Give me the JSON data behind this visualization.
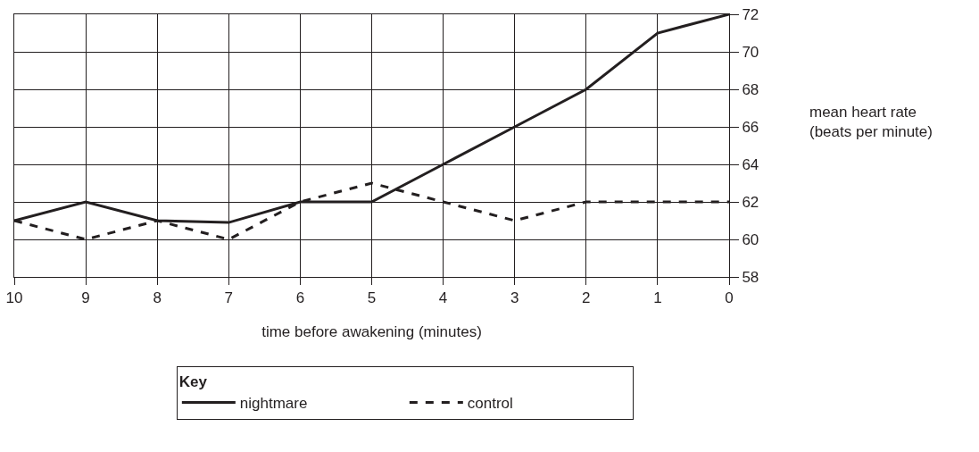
{
  "chart_data": {
    "type": "line",
    "xlabel": "time before awakening (minutes)",
    "ylabel": "mean heart rate\n(beats per minute)",
    "legend_title": "Key",
    "x": [
      10,
      9,
      8,
      7,
      6,
      5,
      4,
      3,
      2,
      1,
      0
    ],
    "series": [
      {
        "name": "nightmare",
        "color": "#231f20",
        "line_style": "solid",
        "values": [
          61,
          62,
          61,
          60.9,
          62,
          62,
          64,
          66,
          68,
          71,
          72
        ]
      },
      {
        "name": "control",
        "color": "#231f20",
        "line_style": "dashed",
        "values": [
          61,
          60,
          61,
          60,
          62,
          63,
          62,
          61,
          62,
          62,
          62
        ]
      }
    ],
    "xlim": [
      10,
      0
    ],
    "xticks": [
      10,
      9,
      8,
      7,
      6,
      5,
      4,
      3,
      2,
      1,
      0
    ],
    "ylim": [
      58,
      72
    ],
    "yticks": [
      58,
      60,
      62,
      64,
      66,
      68,
      70,
      72
    ],
    "grid": true,
    "legend": "bottom"
  }
}
